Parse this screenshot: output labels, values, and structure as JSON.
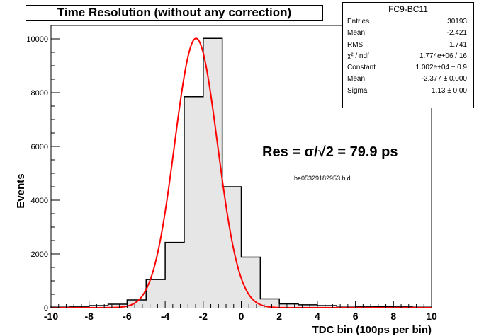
{
  "chart_data": {
    "type": "bar",
    "title": "Time Resolution (without any correction)",
    "xlabel": "TDC bin (100ps per bin)",
    "ylabel": "Events",
    "xlim": [
      -10,
      10
    ],
    "ylim": [
      0,
      10500
    ],
    "x_ticks": [
      "-10",
      "-8",
      "-6",
      "-4",
      "-2",
      "0",
      "2",
      "4",
      "6",
      "8",
      "10"
    ],
    "y_ticks": [
      "0",
      "2000",
      "4000",
      "6000",
      "8000",
      "10000"
    ],
    "bin_edges": [
      -10,
      -9,
      -8,
      -7,
      -6,
      -5,
      -4,
      -3,
      -2,
      -1,
      0,
      1,
      2,
      3,
      4,
      5,
      6,
      7,
      8,
      9,
      10
    ],
    "counts": [
      60,
      50,
      80,
      130,
      290,
      1050,
      2430,
      7850,
      10020,
      4500,
      1880,
      330,
      140,
      110,
      80,
      60,
      50,
      40,
      30,
      20
    ],
    "fit": {
      "function": "gaus",
      "constant": 10020,
      "mean": -2.377,
      "sigma": 1.13,
      "color": "#ff0000"
    },
    "hist_fill": "#e6e6e6",
    "stats_box": {
      "name": "FC9-BC11",
      "rows": [
        {
          "label": "Entries",
          "value": "30193"
        },
        {
          "label": "Mean",
          "value": "-2.421"
        },
        {
          "label": "RMS",
          "value": "1.741"
        },
        {
          "label": "χ² / ndf",
          "value": "1.774e+06 / 16"
        },
        {
          "label": "Constant",
          "value": "1.002e+04 ± 0.9"
        },
        {
          "label": "Mean",
          "value": "-2.377 ± 0.000"
        },
        {
          "label": "Sigma",
          "value": "1.13 ± 0.00"
        }
      ]
    },
    "annotations": {
      "resolution": "Res = σ/√2 = 79.9 ps",
      "filename": "be05329182953.hld"
    }
  }
}
